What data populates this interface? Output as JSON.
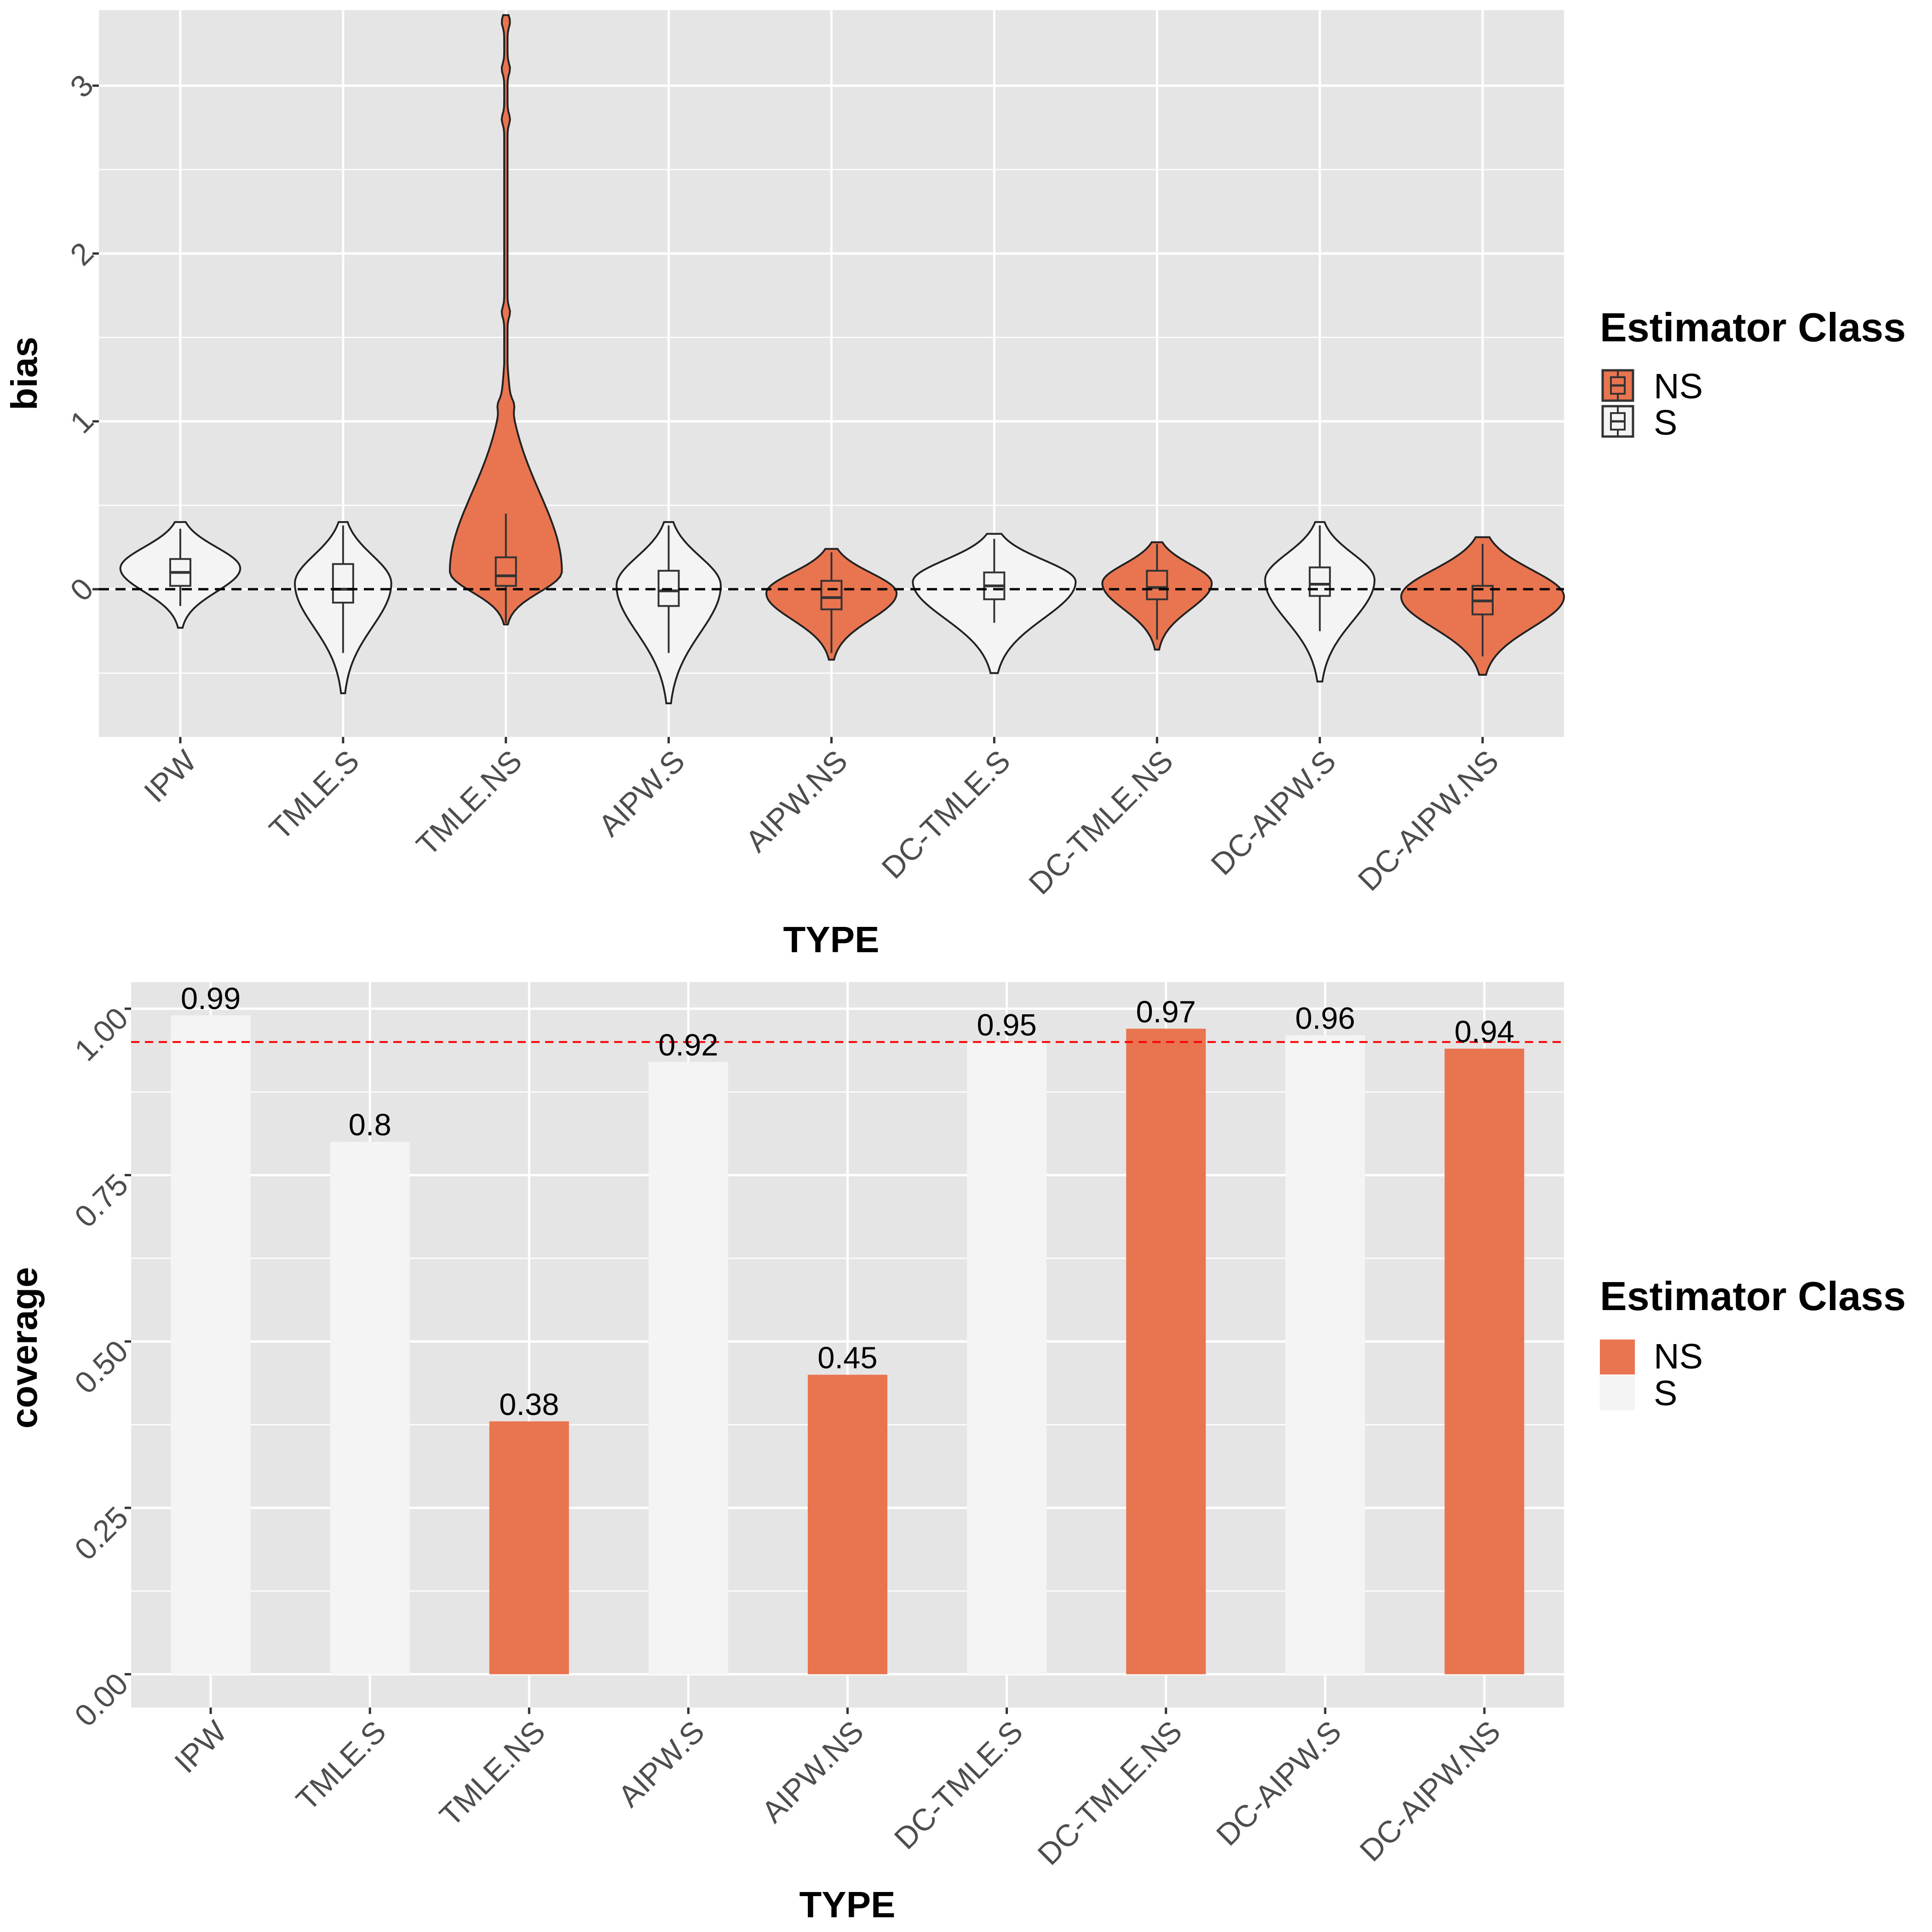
{
  "chart_data": [
    {
      "type": "violin",
      "title": "",
      "xlabel": "TYPE",
      "ylabel": "bias",
      "ylim": [
        -0.88,
        3.45
      ],
      "y_ticks": [
        0,
        1,
        2,
        3
      ],
      "y_tick_labels": [
        "0",
        "1",
        "2",
        "3"
      ],
      "grid": true,
      "reference_line": {
        "y": 0,
        "style": "dashed",
        "color": "#000000"
      },
      "categories": [
        "IPW",
        "TMLE.S",
        "TMLE.NS",
        "AIPW.S",
        "AIPW.NS",
        "DC-TMLE.S",
        "DC-TMLE.NS",
        "DC-AIPW.S",
        "DC-AIPW.NS"
      ],
      "class": [
        "S",
        "S",
        "NS",
        "S",
        "NS",
        "S",
        "NS",
        "S",
        "NS"
      ],
      "box": [
        {
          "q1": 0.02,
          "median": 0.1,
          "q3": 0.18,
          "whisker_low": -0.1,
          "whisker_high": 0.36,
          "min": -0.23,
          "max": 0.4
        },
        {
          "q1": -0.08,
          "median": 0.0,
          "q3": 0.15,
          "whisker_low": -0.38,
          "whisker_high": 0.38,
          "min": -0.62,
          "max": 0.4
        },
        {
          "q1": 0.02,
          "median": 0.08,
          "q3": 0.19,
          "whisker_low": -0.2,
          "whisker_high": 0.45,
          "min": -0.21,
          "max": 3.42
        },
        {
          "q1": -0.1,
          "median": -0.01,
          "q3": 0.11,
          "whisker_low": -0.38,
          "whisker_high": 0.38,
          "min": -0.68,
          "max": 0.4
        },
        {
          "q1": -0.12,
          "median": -0.05,
          "q3": 0.05,
          "whisker_low": -0.38,
          "whisker_high": 0.22,
          "min": -0.42,
          "max": 0.24
        },
        {
          "q1": -0.06,
          "median": 0.02,
          "q3": 0.1,
          "whisker_low": -0.2,
          "whisker_high": 0.3,
          "min": -0.5,
          "max": 0.33
        },
        {
          "q1": -0.06,
          "median": 0.01,
          "q3": 0.11,
          "whisker_low": -0.3,
          "whisker_high": 0.27,
          "min": -0.36,
          "max": 0.28
        },
        {
          "q1": -0.04,
          "median": 0.03,
          "q3": 0.13,
          "whisker_low": -0.25,
          "whisker_high": 0.38,
          "min": -0.55,
          "max": 0.4
        },
        {
          "q1": -0.15,
          "median": -0.07,
          "q3": 0.02,
          "whisker_low": -0.4,
          "whisker_high": 0.27,
          "min": -0.51,
          "max": 0.31
        }
      ],
      "density_width": [
        0.46,
        0.37,
        0.43,
        0.4,
        0.5,
        0.81,
        0.42,
        0.42,
        0.67
      ],
      "tmle_ns_tail_bumps": [
        1.1,
        1.65,
        2.8,
        3.1,
        3.38
      ],
      "legend": {
        "title": "Estimator Class",
        "entries": [
          "NS",
          "S"
        ],
        "position": "right"
      }
    },
    {
      "type": "bar",
      "title": "",
      "xlabel": "TYPE",
      "ylabel": "coverage",
      "ylim": [
        -0.05,
        1.04
      ],
      "y_ticks": [
        0,
        0.25,
        0.5,
        0.75,
        1.0
      ],
      "y_tick_labels": [
        "0.00",
        "0.25",
        "0.50",
        "0.75",
        "1.00"
      ],
      "grid": true,
      "reference_line": {
        "y": 0.95,
        "style": "dashed",
        "color": "#ff0000"
      },
      "categories": [
        "IPW",
        "TMLE.S",
        "TMLE.NS",
        "AIPW.S",
        "AIPW.NS",
        "DC-TMLE.S",
        "DC-TMLE.NS",
        "DC-AIPW.S",
        "DC-AIPW.NS"
      ],
      "class": [
        "S",
        "S",
        "NS",
        "S",
        "NS",
        "S",
        "NS",
        "S",
        "NS"
      ],
      "values": [
        0.99,
        0.8,
        0.38,
        0.92,
        0.45,
        0.95,
        0.97,
        0.96,
        0.94
      ],
      "value_labels": [
        "0.99",
        "0.8",
        "0.38",
        "0.92",
        "0.45",
        "0.95",
        "0.97",
        "0.96",
        "0.94"
      ],
      "legend": {
        "title": "Estimator Class",
        "entries": [
          "NS",
          "S"
        ],
        "position": "right"
      }
    }
  ],
  "colors": {
    "NS": "#e8754f",
    "S": "#f4f4f4",
    "panel_background": "#e5e5e5",
    "grid": "#ffffff",
    "reference_top": "#000000",
    "reference_bottom": "#ff0000"
  }
}
